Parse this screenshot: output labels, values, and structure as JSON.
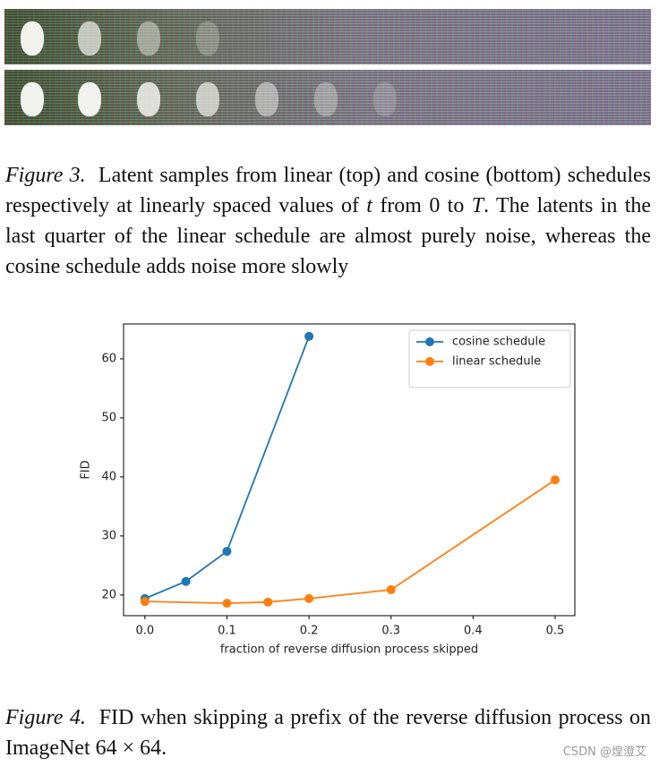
{
  "figure3": {
    "label": "Figure 3.",
    "text": [
      "Latent samples from linear (top) and cosine (bottom) schedules respectively at linearly spaced values of ",
      "t",
      " from 0 to ",
      "T",
      ". The latents in the last quarter of the linear schedule are almost purely noise, whereas the cosine schedule adds noise more slowly"
    ]
  },
  "chart_data": {
    "type": "line",
    "xlabel": "fraction of reverse diffusion process skipped",
    "ylabel": "FID",
    "xlim": [
      -0.026,
      0.524
    ],
    "ylim": [
      16.5,
      65.9
    ],
    "xticks": [
      {
        "value": 0,
        "label": "0.0"
      },
      {
        "value": 0.1,
        "label": "0.1"
      },
      {
        "value": 0.2,
        "label": "0.2"
      },
      {
        "value": 0.3,
        "label": "0.3"
      },
      {
        "value": 0.4,
        "label": "0.4"
      },
      {
        "value": 0.5,
        "label": "0.5"
      }
    ],
    "yticks": [
      20,
      30,
      40,
      50,
      60
    ],
    "legend": "upper right",
    "series": [
      {
        "name": "cosine schedule",
        "color": "#1f77b4",
        "x": [
          0,
          0.05,
          0.1,
          0.2
        ],
        "values": [
          19.4,
          22.3,
          27.4,
          63.8
        ]
      },
      {
        "name": "linear schedule",
        "color": "#ff7f0e",
        "x": [
          0,
          0.1,
          0.15,
          0.2,
          0.3,
          0.5
        ],
        "values": [
          18.9,
          18.6,
          18.8,
          19.4,
          20.9,
          39.5
        ]
      }
    ]
  },
  "figure4": {
    "label": "Figure 4.",
    "text": [
      "FID when skipping a prefix of the reverse diffusion process on ImageNet ",
      "64 × 64",
      "."
    ]
  },
  "watermark": "CSDN @煌澄艾"
}
